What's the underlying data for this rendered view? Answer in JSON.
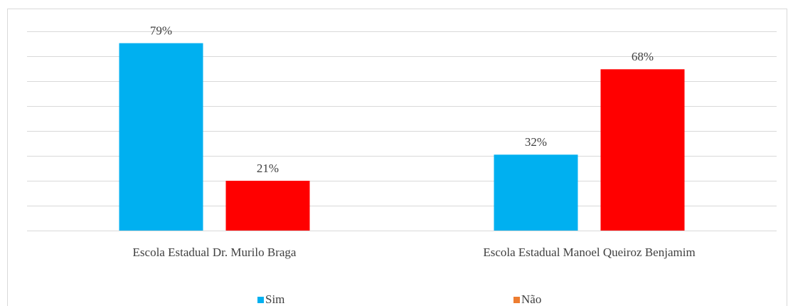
{
  "chart_data": {
    "type": "bar",
    "categories": [
      "Escola Estadual Dr. Murilo Braga",
      "Escola Estadual Manoel Queiroz Benjamim"
    ],
    "series": [
      {
        "name": "Sim",
        "color": "#00b0f0",
        "legend_color": "#00b0f0",
        "values": [
          79,
          32
        ],
        "value_labels": [
          "79%",
          "32%"
        ]
      },
      {
        "name": "Não",
        "color": "#ff0000",
        "legend_color": "#ed7d31",
        "values": [
          21,
          68
        ],
        "value_labels": [
          "21%",
          "68%"
        ]
      }
    ],
    "ylim": [
      0,
      84
    ],
    "yticks": [
      0,
      10.5,
      21,
      31.5,
      42,
      52.5,
      63,
      73.5,
      84
    ],
    "grid": true,
    "legend": "bottom"
  }
}
